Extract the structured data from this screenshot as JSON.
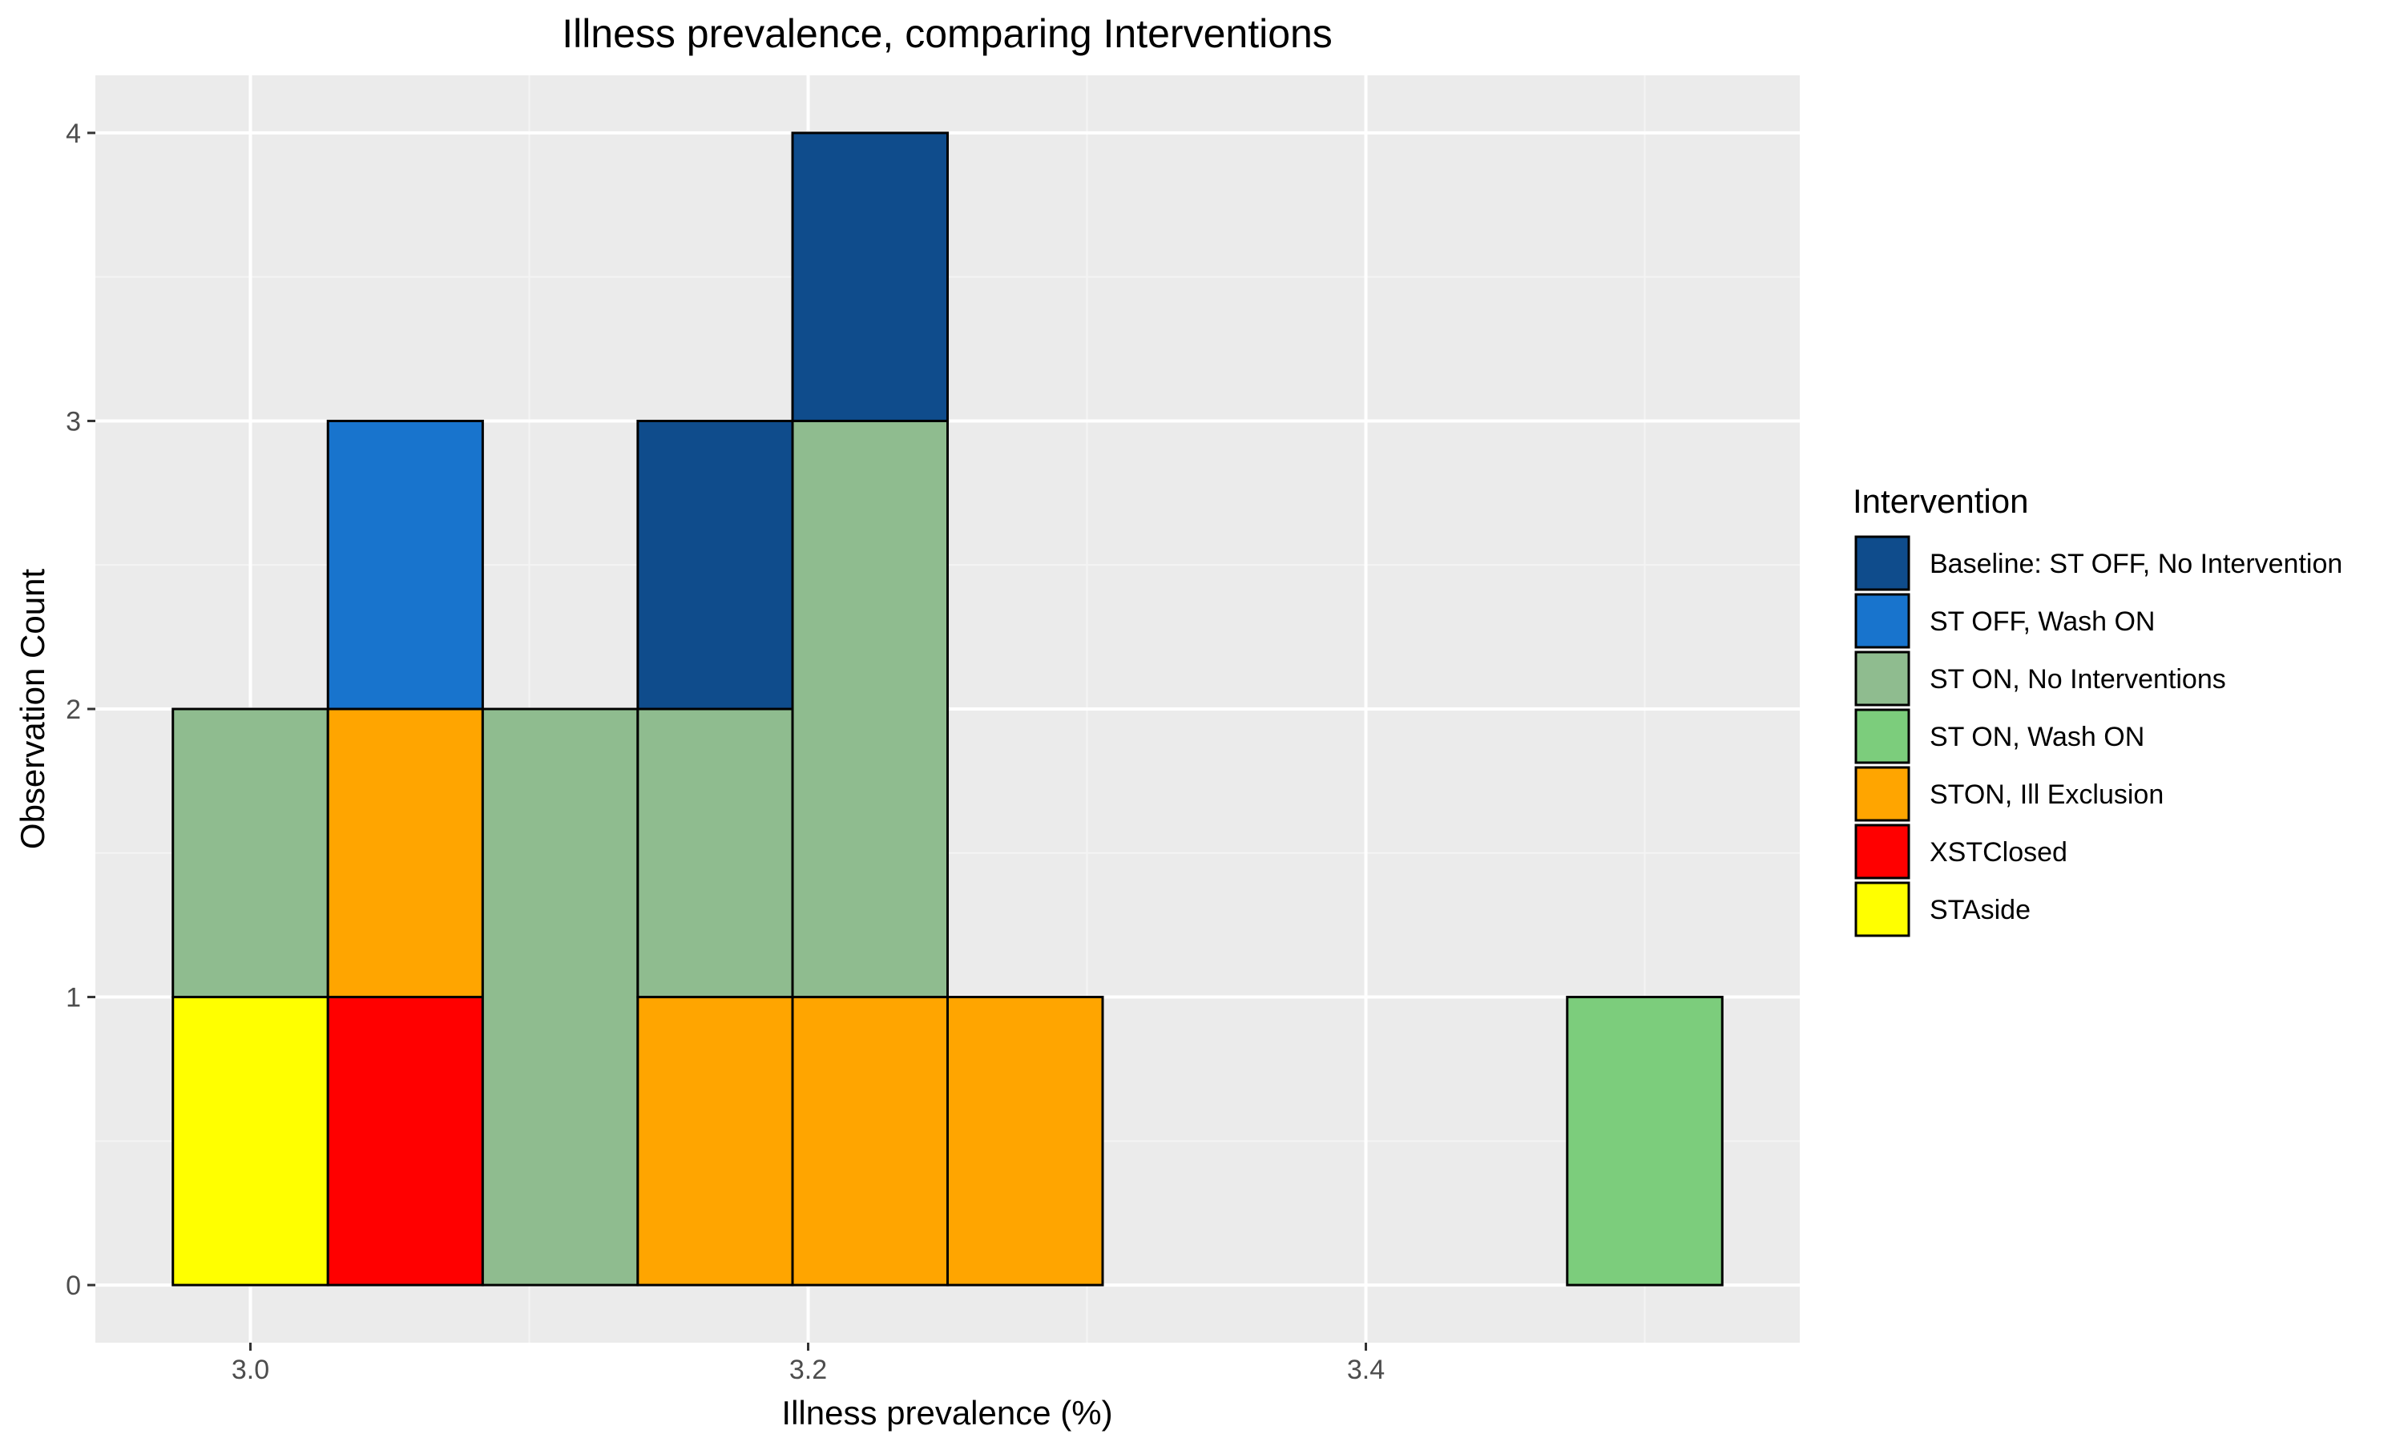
{
  "colors": {
    "panel_background": "#EBEBEB",
    "grid_major": "#FFFFFF",
    "grid_minor": "#F4F4F4",
    "tick_text": "#4D4D4D",
    "bar_outline": "#000000",
    "text": "#000000"
  },
  "chart_data": {
    "type": "bar",
    "subtype": "stacked-histogram",
    "title": "Illness prevalence, comparing Interventions",
    "xlabel": "Illness prevalence (%)",
    "ylabel": "Observation Count",
    "xlim": [
      2.9444,
      3.5556
    ],
    "ylim": [
      -0.2,
      4.2
    ],
    "x_ticks": [
      {
        "value": 3.0,
        "label": "3.0"
      },
      {
        "value": 3.2,
        "label": "3.2"
      },
      {
        "value": 3.4,
        "label": "3.4"
      }
    ],
    "y_ticks": [
      {
        "value": 0,
        "label": "0"
      },
      {
        "value": 1,
        "label": "1"
      },
      {
        "value": 2,
        "label": "2"
      },
      {
        "value": 3,
        "label": "3"
      },
      {
        "value": 4,
        "label": "4"
      }
    ],
    "grid": true,
    "bin_edges": [
      2.9722,
      3.0278,
      3.0833,
      3.1389,
      3.1944,
      3.25,
      3.3056,
      3.3611,
      3.4167,
      3.4722,
      3.5278
    ],
    "legend": {
      "title": "Intervention",
      "position": "right"
    },
    "series": [
      {
        "name": "Baseline: ST OFF, No Intervention",
        "color": "#0F4C8C",
        "values": [
          0,
          0,
          0,
          1,
          1,
          0,
          0,
          0,
          0,
          0
        ]
      },
      {
        "name": "ST OFF, Wash ON",
        "color": "#1874CD",
        "values": [
          0,
          1,
          0,
          0,
          0,
          0,
          0,
          0,
          0,
          0
        ]
      },
      {
        "name": "ST ON, No Interventions",
        "color": "#8FBC8F",
        "values": [
          1,
          0,
          2,
          1,
          2,
          0,
          0,
          0,
          0,
          0
        ]
      },
      {
        "name": "ST ON, Wash ON",
        "color": "#7CCD7C",
        "values": [
          0,
          0,
          0,
          0,
          0,
          0,
          0,
          0,
          0,
          1
        ]
      },
      {
        "name": "STON, Ill Exclusion",
        "color": "#FFA500",
        "values": [
          0,
          1,
          0,
          1,
          1,
          1,
          0,
          0,
          0,
          0
        ]
      },
      {
        "name": "XSTClosed",
        "color": "#FF0000",
        "values": [
          0,
          1,
          0,
          0,
          0,
          0,
          0,
          0,
          0,
          0
        ]
      },
      {
        "name": "STAside",
        "color": "#FFFF00",
        "values": [
          1,
          0,
          0,
          0,
          0,
          0,
          0,
          0,
          0,
          0
        ]
      }
    ]
  }
}
